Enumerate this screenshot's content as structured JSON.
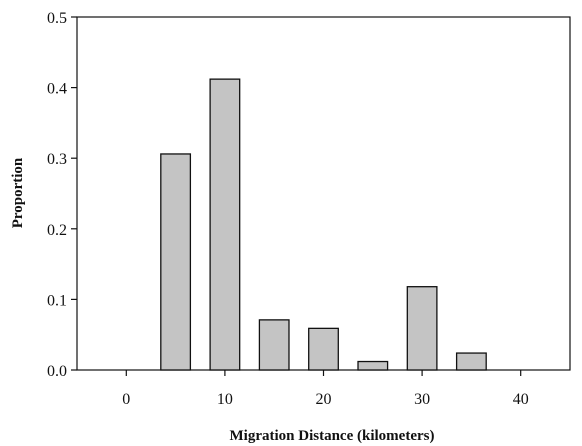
{
  "chart_data": {
    "type": "bar",
    "title": "",
    "xlabel": "Migration Distance (kilometers)",
    "ylabel": "Proportion",
    "x": [
      5,
      10,
      15,
      20,
      25,
      30,
      35
    ],
    "values": [
      0.306,
      0.412,
      0.071,
      0.059,
      0.012,
      0.118,
      0.024
    ],
    "bar_width": 3,
    "xlim": [
      -5,
      45
    ],
    "ylim": [
      0,
      0.5
    ],
    "x_ticks": [
      0,
      10,
      20,
      30,
      40
    ],
    "x_tick_labels": [
      "0",
      "10",
      "20",
      "30",
      "40"
    ],
    "y_ticks": [
      0,
      0.1,
      0.2,
      0.3,
      0.4,
      0.5
    ],
    "y_tick_labels": [
      "0.0",
      "0.1",
      "0.2",
      "0.3",
      "0.4",
      "0.5"
    ],
    "grid": false,
    "legend": "none",
    "colors": {
      "bar_fill": "#c4c4c4",
      "bar_stroke": "#111111",
      "axis": "#111111"
    }
  }
}
